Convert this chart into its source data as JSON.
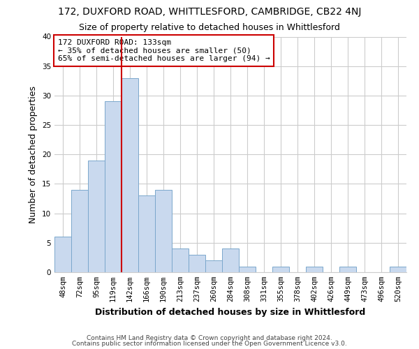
{
  "title": "172, DUXFORD ROAD, WHITTLESFORD, CAMBRIDGE, CB22 4NJ",
  "subtitle": "Size of property relative to detached houses in Whittlesford",
  "xlabel": "Distribution of detached houses by size in Whittlesford",
  "ylabel": "Number of detached properties",
  "bar_labels": [
    "48sqm",
    "72sqm",
    "95sqm",
    "119sqm",
    "142sqm",
    "166sqm",
    "190sqm",
    "213sqm",
    "237sqm",
    "260sqm",
    "284sqm",
    "308sqm",
    "331sqm",
    "355sqm",
    "378sqm",
    "402sqm",
    "426sqm",
    "449sqm",
    "473sqm",
    "496sqm",
    "520sqm"
  ],
  "bar_heights": [
    6,
    14,
    19,
    29,
    33,
    13,
    14,
    4,
    3,
    2,
    4,
    1,
    0,
    1,
    0,
    1,
    0,
    1,
    0,
    0,
    1
  ],
  "bar_color": "#c9d9ee",
  "bar_edge_color": "#7ba7cc",
  "vline_color": "#cc0000",
  "vline_pos": 3.5,
  "ylim": [
    0,
    40
  ],
  "yticks": [
    0,
    5,
    10,
    15,
    20,
    25,
    30,
    35,
    40
  ],
  "annotation_line1": "172 DUXFORD ROAD: 133sqm",
  "annotation_line2": "← 35% of detached houses are smaller (50)",
  "annotation_line3": "65% of semi-detached houses are larger (94) →",
  "annotation_box_color": "#ffffff",
  "annotation_box_edge": "#cc0000",
  "footer1": "Contains HM Land Registry data © Crown copyright and database right 2024.",
  "footer2": "Contains public sector information licensed under the Open Government Licence v3.0.",
  "bg_color": "#ffffff",
  "grid_color": "#cccccc",
  "title_fontsize": 10,
  "subtitle_fontsize": 9,
  "axis_label_fontsize": 9,
  "tick_fontsize": 7.5,
  "annotation_fontsize": 8,
  "footer_fontsize": 6.5
}
